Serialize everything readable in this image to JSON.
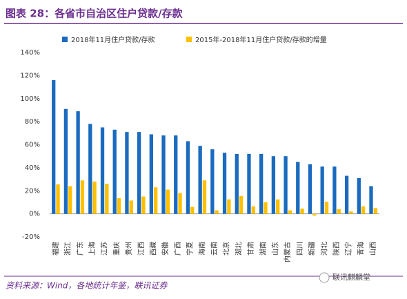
{
  "chart_data": {
    "type": "bar",
    "title": "图表 28：各省市自治区住户贷款/存款",
    "categories": [
      "福建",
      "浙江",
      "广东",
      "上海",
      "江苏",
      "重庆",
      "贵州",
      "江西",
      "西藏",
      "安徽",
      "广西",
      "宁夏",
      "海南",
      "云南",
      "北京",
      "湖北",
      "甘肃",
      "湖南",
      "山东",
      "内蒙古",
      "四川",
      "新疆",
      "河北",
      "陕西",
      "辽宁",
      "青海",
      "山西"
    ],
    "series": [
      {
        "name": "2018年11月住户贷款/存款",
        "color": "#1a6bbf",
        "values": [
          116,
          91,
          89,
          78,
          75,
          73,
          71,
          71,
          69,
          68,
          68,
          63,
          59,
          56,
          53,
          52,
          52,
          52,
          50,
          50,
          45,
          43,
          41,
          41,
          33,
          31,
          24
        ]
      },
      {
        "name": "2015年-2018年11月住户贷款/存款的增量",
        "color": "#ffc000",
        "values": [
          25.5,
          24,
          29,
          28,
          26,
          13.5,
          11.5,
          15,
          23,
          21,
          18,
          6,
          29,
          3,
          12.5,
          15.5,
          6.5,
          10,
          12.5,
          3,
          4.5,
          -1.5,
          10.5,
          4,
          2,
          6.5,
          5
        ]
      }
    ],
    "ylim": [
      -20,
      140
    ],
    "yticks": [
      {
        "value": -20,
        "label": "-20%"
      },
      {
        "value": 0,
        "label": "0%"
      },
      {
        "value": 20,
        "label": "20%"
      },
      {
        "value": 40,
        "label": "40%"
      },
      {
        "value": 60,
        "label": "60%"
      },
      {
        "value": 80,
        "label": "80%"
      },
      {
        "value": 100,
        "label": "100%"
      },
      {
        "value": 120,
        "label": "120%"
      },
      {
        "value": 140,
        "label": "140%"
      }
    ],
    "source": "资料来源：Wind，各地统计年鉴，联讯证券",
    "watermark": "联讯麒麟堂"
  }
}
